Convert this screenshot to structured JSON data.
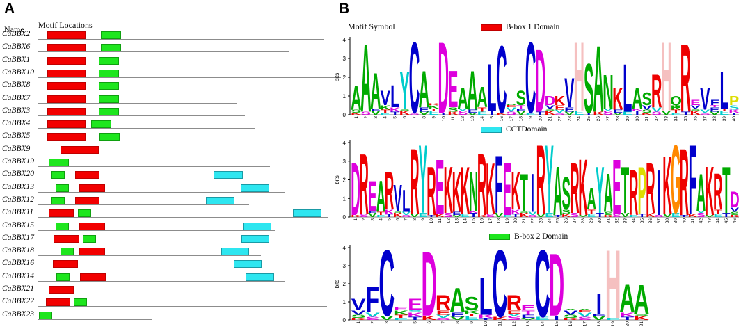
{
  "panelA": {
    "label": "A",
    "name_header": "Name",
    "motif_header": "Motif Locations",
    "colors": {
      "bbox1": "#f20000",
      "cct": "#2ee6f0",
      "bbox2": "#1ee61e",
      "line": "#8c8c8c"
    },
    "genes": [
      {
        "name": "CaBBX2"
      },
      {
        "name": "CaBBX6"
      },
      {
        "name": "CaBBX1"
      },
      {
        "name": "CaBBX10"
      },
      {
        "name": "CaBBX8"
      },
      {
        "name": "CaBBX7"
      },
      {
        "name": "CaBBX3"
      },
      {
        "name": "CaBBX4"
      },
      {
        "name": "CaBBX5"
      },
      {
        "name": "CaBBX9"
      },
      {
        "name": "CaBBX19"
      },
      {
        "name": "CaBBX20"
      },
      {
        "name": "CaBBX13"
      },
      {
        "name": "CaBBX12"
      },
      {
        "name": "CaBBX11"
      },
      {
        "name": "CaBBX15"
      },
      {
        "name": "CaBBX17"
      },
      {
        "name": "CaBBX18"
      },
      {
        "name": "CaBBX16"
      },
      {
        "name": "CaBBX14"
      },
      {
        "name": "CaBBX21"
      },
      {
        "name": "CaBBX22"
      },
      {
        "name": "CaBBX23"
      }
    ]
  },
  "panelB": {
    "label": "B",
    "motif_symbol_header": "Motif Symbol",
    "y_axis_label": "bits",
    "y_ticks": [
      "0",
      "1",
      "2",
      "3",
      "4"
    ],
    "logos": [
      {
        "legend": "B-box 1 Domain",
        "legend_color": "#f20000",
        "positions": 40,
        "consensus": [
          {
            "l": "A",
            "c": "#00aa00",
            "h": 1.6
          },
          {
            "l": "A",
            "c": "#00aa00",
            "h": 3.9
          },
          {
            "l": "A",
            "c": "#00aa00",
            "h": 2.3
          },
          {
            "l": "V",
            "c": "#0000cc",
            "h": 1.3
          },
          {
            "l": "L",
            "c": "#0000cc",
            "h": 1.6
          },
          {
            "l": "Y",
            "c": "#00cccc",
            "h": 2.4
          },
          {
            "l": "C",
            "c": "#0000cc",
            "h": 4.0
          },
          {
            "l": "A",
            "c": "#00aa00",
            "h": 2.4
          },
          {
            "l": "K",
            "c": "#ee0000",
            "h": 0.6
          },
          {
            "l": "D",
            "c": "#dd00dd",
            "h": 4.0
          },
          {
            "l": "E",
            "c": "#dd00dd",
            "h": 2.4
          },
          {
            "l": "A",
            "c": "#00aa00",
            "h": 1.5
          },
          {
            "l": "A",
            "c": "#00aa00",
            "h": 2.4
          },
          {
            "l": "A",
            "c": "#00aa00",
            "h": 1.5
          },
          {
            "l": "L",
            "c": "#0000cc",
            "h": 2.8
          },
          {
            "l": "C",
            "c": "#0000cc",
            "h": 3.8
          },
          {
            "l": "A",
            "c": "#00aa00",
            "h": 0.5
          },
          {
            "l": "S",
            "c": "#00aa00",
            "h": 1.3
          },
          {
            "l": "C",
            "c": "#0000cc",
            "h": 4.0
          },
          {
            "l": "D",
            "c": "#dd00dd",
            "h": 3.6
          },
          {
            "l": "D",
            "c": "#dd00dd",
            "h": 1.0
          },
          {
            "l": "K",
            "c": "#ee0000",
            "h": 1.0
          },
          {
            "l": "V",
            "c": "#0000cc",
            "h": 2.0
          },
          {
            "l": "H",
            "c": "#f5c0c0",
            "h": 4.0
          },
          {
            "l": "S",
            "c": "#00aa00",
            "h": 2.8
          },
          {
            "l": "A",
            "c": "#00aa00",
            "h": 3.8
          },
          {
            "l": "N",
            "c": "#00aa00",
            "h": 2.2
          },
          {
            "l": "K",
            "c": "#ee0000",
            "h": 1.5
          },
          {
            "l": "L",
            "c": "#0000cc",
            "h": 2.8
          },
          {
            "l": "A",
            "c": "#00aa00",
            "h": 1.5
          },
          {
            "l": "S",
            "c": "#00aa00",
            "h": 1.2
          },
          {
            "l": "R",
            "c": "#ee0000",
            "h": 2.2
          },
          {
            "l": "H",
            "c": "#f5c0c0",
            "h": 4.0
          },
          {
            "l": "Q",
            "c": "#00aa00",
            "h": 1.0
          },
          {
            "l": "R",
            "c": "#ee0000",
            "h": 3.9
          },
          {
            "l": "E",
            "c": "#dd00dd",
            "h": 0.8
          },
          {
            "l": "V",
            "c": "#0000cc",
            "h": 1.5
          },
          {
            "l": "F",
            "c": "#0000cc",
            "h": 0.8
          },
          {
            "l": "L",
            "c": "#0000cc",
            "h": 2.4
          },
          {
            "l": "P",
            "c": "#dddd00",
            "h": 1.0
          }
        ]
      },
      {
        "legend": "CCTDomain",
        "legend_color": "#2ee6f0",
        "positions": 46,
        "consensus": [
          {
            "l": "D",
            "c": "#dd00dd",
            "h": 3.0
          },
          {
            "l": "R",
            "c": "#ee0000",
            "h": 3.5
          },
          {
            "l": "E",
            "c": "#dd00dd",
            "h": 2.0
          },
          {
            "l": "A",
            "c": "#00aa00",
            "h": 2.0
          },
          {
            "l": "R",
            "c": "#ee0000",
            "h": 2.5
          },
          {
            "l": "V",
            "c": "#0000cc",
            "h": 1.8
          },
          {
            "l": "L",
            "c": "#0000cc",
            "h": 1.5
          },
          {
            "l": "R",
            "c": "#ee0000",
            "h": 3.8
          },
          {
            "l": "Y",
            "c": "#00cccc",
            "h": 4.0
          },
          {
            "l": "R",
            "c": "#ee0000",
            "h": 2.8
          },
          {
            "l": "E",
            "c": "#dd00dd",
            "h": 3.2
          },
          {
            "l": "K",
            "c": "#ee0000",
            "h": 2.8
          },
          {
            "l": "K",
            "c": "#ee0000",
            "h": 2.5
          },
          {
            "l": "K",
            "c": "#ee0000",
            "h": 2.8
          },
          {
            "l": "N",
            "c": "#00aa00",
            "h": 2.5
          },
          {
            "l": "R",
            "c": "#ee0000",
            "h": 3.5
          },
          {
            "l": "K",
            "c": "#ee0000",
            "h": 3.0
          },
          {
            "l": "F",
            "c": "#0000cc",
            "h": 3.4
          },
          {
            "l": "E",
            "c": "#dd00dd",
            "h": 3.0
          },
          {
            "l": "K",
            "c": "#ee0000",
            "h": 2.5
          },
          {
            "l": "T",
            "c": "#00aa00",
            "h": 2.4
          },
          {
            "l": "I",
            "c": "#0000cc",
            "h": 2.4
          },
          {
            "l": "R",
            "c": "#ee0000",
            "h": 4.0
          },
          {
            "l": "Y",
            "c": "#00cccc",
            "h": 4.0
          },
          {
            "l": "A",
            "c": "#00aa00",
            "h": 2.8
          },
          {
            "l": "S",
            "c": "#00aa00",
            "h": 2.2
          },
          {
            "l": "R",
            "c": "#ee0000",
            "h": 3.0
          },
          {
            "l": "K",
            "c": "#ee0000",
            "h": 3.2
          },
          {
            "l": "A",
            "c": "#00aa00",
            "h": 1.6
          },
          {
            "l": "Y",
            "c": "#00cccc",
            "h": 2.8
          },
          {
            "l": "A",
            "c": "#00aa00",
            "h": 2.4
          },
          {
            "l": "E",
            "c": "#dd00dd",
            "h": 3.2
          },
          {
            "l": "T",
            "c": "#00aa00",
            "h": 2.8
          },
          {
            "l": "R",
            "c": "#ee0000",
            "h": 2.6
          },
          {
            "l": "P",
            "c": "#dddd00",
            "h": 2.8
          },
          {
            "l": "R",
            "c": "#ee0000",
            "h": 3.0
          },
          {
            "l": "I",
            "c": "#0000cc",
            "h": 2.6
          },
          {
            "l": "K",
            "c": "#ee0000",
            "h": 3.4
          },
          {
            "l": "G",
            "c": "#ff8800",
            "h": 4.0
          },
          {
            "l": "R",
            "c": "#ee0000",
            "h": 3.8
          },
          {
            "l": "F",
            "c": "#0000cc",
            "h": 4.0
          },
          {
            "l": "A",
            "c": "#00aa00",
            "h": 2.4
          },
          {
            "l": "K",
            "c": "#ee0000",
            "h": 2.8
          },
          {
            "l": "R",
            "c": "#ee0000",
            "h": 2.4
          },
          {
            "l": "T",
            "c": "#00aa00",
            "h": 2.8
          },
          {
            "l": "D",
            "c": "#dd00dd",
            "h": 1.4
          }
        ]
      },
      {
        "legend": "B-box 2 Domain",
        "legend_color": "#1ee61e",
        "positions": 21,
        "consensus": [
          {
            "l": "V",
            "c": "#0000cc",
            "h": 1.2
          },
          {
            "l": "F",
            "c": "#0000cc",
            "h": 1.9
          },
          {
            "l": "C",
            "c": "#0000cc",
            "h": 4.0
          },
          {
            "l": "E",
            "c": "#dd00dd",
            "h": 0.7
          },
          {
            "l": "E",
            "c": "#dd00dd",
            "h": 1.2
          },
          {
            "l": "D",
            "c": "#dd00dd",
            "h": 3.9
          },
          {
            "l": "R",
            "c": "#ee0000",
            "h": 1.4
          },
          {
            "l": "A",
            "c": "#00aa00",
            "h": 1.8
          },
          {
            "l": "S",
            "c": "#00aa00",
            "h": 1.3
          },
          {
            "l": "L",
            "c": "#0000cc",
            "h": 2.4
          },
          {
            "l": "C",
            "c": "#0000cc",
            "h": 4.0
          },
          {
            "l": "R",
            "c": "#ee0000",
            "h": 1.4
          },
          {
            "l": "E",
            "c": "#dd00dd",
            "h": 0.8
          },
          {
            "l": "C",
            "c": "#0000cc",
            "h": 4.0
          },
          {
            "l": "D",
            "c": "#dd00dd",
            "h": 3.8
          },
          {
            "l": "A",
            "c": "#00aa00",
            "h": 0.5
          },
          {
            "l": "A",
            "c": "#00aa00",
            "h": 0.4
          },
          {
            "l": "I",
            "c": "#0000cc",
            "h": 1.5
          },
          {
            "l": "H",
            "c": "#f5c0c0",
            "h": 4.0
          },
          {
            "l": "A",
            "c": "#00aa00",
            "h": 2.0
          },
          {
            "l": "A",
            "c": "#00aa00",
            "h": 2.0
          }
        ]
      }
    ]
  }
}
